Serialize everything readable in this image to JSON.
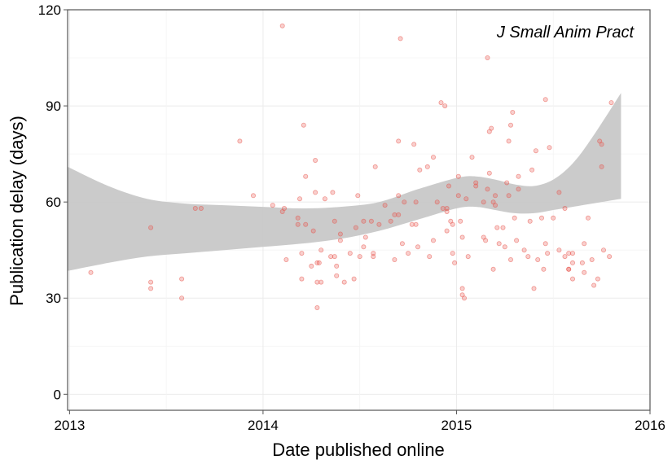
{
  "chart_data": {
    "type": "scatter",
    "title": "",
    "annotation": "J Small Anim Pract",
    "xlabel": "Date published online",
    "ylabel": "Publication delay (days)",
    "xlim": [
      2012.99,
      2016.0
    ],
    "ylim": [
      -5,
      120
    ],
    "x_ticks": [
      2013,
      2014,
      2015,
      2016
    ],
    "x_tick_labels": [
      "2013",
      "2014",
      "2015",
      "2016"
    ],
    "y_ticks": [
      0,
      30,
      60,
      90,
      120
    ],
    "y_tick_labels": [
      "0",
      "30",
      "60",
      "90",
      "120"
    ],
    "grid": true,
    "colors": {
      "points": "#e8534a",
      "band": "#c8c8c8",
      "grid": "#ebebeb",
      "axis": "#555555"
    },
    "series": [
      {
        "type": "scatter",
        "points": [
          [
            2013.11,
            38
          ],
          [
            2013.42,
            52
          ],
          [
            2013.42,
            35
          ],
          [
            2013.42,
            33
          ],
          [
            2013.58,
            36
          ],
          [
            2013.58,
            30
          ],
          [
            2013.65,
            58
          ],
          [
            2013.68,
            58
          ],
          [
            2013.88,
            79
          ],
          [
            2013.95,
            62
          ],
          [
            2014.05,
            59
          ],
          [
            2014.1,
            115
          ],
          [
            2014.1,
            57
          ],
          [
            2014.11,
            58
          ],
          [
            2014.12,
            42
          ],
          [
            2014.18,
            55
          ],
          [
            2014.18,
            53
          ],
          [
            2014.19,
            61
          ],
          [
            2014.2,
            44
          ],
          [
            2014.2,
            36
          ],
          [
            2014.21,
            84
          ],
          [
            2014.22,
            53
          ],
          [
            2014.22,
            68
          ],
          [
            2014.25,
            40
          ],
          [
            2014.26,
            51
          ],
          [
            2014.27,
            63
          ],
          [
            2014.27,
            73
          ],
          [
            2014.28,
            35
          ],
          [
            2014.28,
            27
          ],
          [
            2014.28,
            41
          ],
          [
            2014.29,
            41
          ],
          [
            2014.3,
            45
          ],
          [
            2014.3,
            35
          ],
          [
            2014.32,
            61
          ],
          [
            2014.35,
            43
          ],
          [
            2014.36,
            63
          ],
          [
            2014.37,
            54
          ],
          [
            2014.37,
            43
          ],
          [
            2014.38,
            40
          ],
          [
            2014.38,
            37
          ],
          [
            2014.4,
            50
          ],
          [
            2014.4,
            48
          ],
          [
            2014.42,
            35
          ],
          [
            2014.45,
            44
          ],
          [
            2014.47,
            36
          ],
          [
            2014.48,
            52
          ],
          [
            2014.49,
            62
          ],
          [
            2014.5,
            43
          ],
          [
            2014.52,
            54
          ],
          [
            2014.52,
            46
          ],
          [
            2014.53,
            49
          ],
          [
            2014.56,
            54
          ],
          [
            2014.57,
            44
          ],
          [
            2014.57,
            43
          ],
          [
            2014.58,
            71
          ],
          [
            2014.6,
            53
          ],
          [
            2014.63,
            59
          ],
          [
            2014.66,
            54
          ],
          [
            2014.68,
            42
          ],
          [
            2014.68,
            56
          ],
          [
            2014.7,
            79
          ],
          [
            2014.7,
            62
          ],
          [
            2014.7,
            56
          ],
          [
            2014.71,
            111
          ],
          [
            2014.72,
            47
          ],
          [
            2014.73,
            60
          ],
          [
            2014.75,
            44
          ],
          [
            2014.77,
            53
          ],
          [
            2014.78,
            78
          ],
          [
            2014.79,
            60
          ],
          [
            2014.79,
            53
          ],
          [
            2014.8,
            46
          ],
          [
            2014.81,
            70
          ],
          [
            2014.85,
            71
          ],
          [
            2014.86,
            43
          ],
          [
            2014.88,
            74
          ],
          [
            2014.88,
            48
          ],
          [
            2014.9,
            60
          ],
          [
            2014.92,
            91
          ],
          [
            2014.93,
            58
          ],
          [
            2014.94,
            90
          ],
          [
            2014.95,
            57
          ],
          [
            2014.95,
            58
          ],
          [
            2014.95,
            51
          ],
          [
            2014.96,
            65
          ],
          [
            2014.97,
            54
          ],
          [
            2014.98,
            53
          ],
          [
            2014.98,
            44
          ],
          [
            2014.99,
            41
          ],
          [
            2015.01,
            68
          ],
          [
            2015.01,
            62
          ],
          [
            2015.02,
            54
          ],
          [
            2015.03,
            49
          ],
          [
            2015.03,
            33
          ],
          [
            2015.03,
            31
          ],
          [
            2015.04,
            30
          ],
          [
            2015.05,
            61
          ],
          [
            2015.06,
            43
          ],
          [
            2015.08,
            74
          ],
          [
            2015.1,
            66
          ],
          [
            2015.1,
            65
          ],
          [
            2015.14,
            60
          ],
          [
            2015.14,
            49
          ],
          [
            2015.15,
            48
          ],
          [
            2015.16,
            105
          ],
          [
            2015.16,
            64
          ],
          [
            2015.17,
            69
          ],
          [
            2015.17,
            82
          ],
          [
            2015.18,
            83
          ],
          [
            2015.19,
            60
          ],
          [
            2015.19,
            39
          ],
          [
            2015.2,
            62
          ],
          [
            2015.2,
            59
          ],
          [
            2015.21,
            52
          ],
          [
            2015.22,
            47
          ],
          [
            2015.24,
            52
          ],
          [
            2015.25,
            46
          ],
          [
            2015.26,
            66
          ],
          [
            2015.27,
            62
          ],
          [
            2015.27,
            79
          ],
          [
            2015.28,
            84
          ],
          [
            2015.28,
            42
          ],
          [
            2015.29,
            88
          ],
          [
            2015.3,
            55
          ],
          [
            2015.31,
            48
          ],
          [
            2015.32,
            68
          ],
          [
            2015.32,
            64
          ],
          [
            2015.35,
            45
          ],
          [
            2015.37,
            43
          ],
          [
            2015.38,
            54
          ],
          [
            2015.39,
            70
          ],
          [
            2015.4,
            33
          ],
          [
            2015.41,
            76
          ],
          [
            2015.42,
            42
          ],
          [
            2015.44,
            55
          ],
          [
            2015.45,
            39
          ],
          [
            2015.46,
            92
          ],
          [
            2015.46,
            47
          ],
          [
            2015.47,
            44
          ],
          [
            2015.48,
            77
          ],
          [
            2015.5,
            55
          ],
          [
            2015.53,
            45
          ],
          [
            2015.53,
            63
          ],
          [
            2015.56,
            58
          ],
          [
            2015.56,
            43
          ],
          [
            2015.58,
            39
          ],
          [
            2015.58,
            44
          ],
          [
            2015.58,
            39
          ],
          [
            2015.6,
            44
          ],
          [
            2015.6,
            41
          ],
          [
            2015.6,
            36
          ],
          [
            2015.65,
            41
          ],
          [
            2015.66,
            38
          ],
          [
            2015.66,
            47
          ],
          [
            2015.68,
            55
          ],
          [
            2015.7,
            42
          ],
          [
            2015.71,
            34
          ],
          [
            2015.73,
            36
          ],
          [
            2015.74,
            79
          ],
          [
            2015.75,
            78
          ],
          [
            2015.75,
            71
          ],
          [
            2015.76,
            45
          ],
          [
            2015.79,
            43
          ],
          [
            2015.8,
            91
          ]
        ]
      },
      {
        "type": "band",
        "x": [
          2012.99,
          2013.2,
          2013.4,
          2013.6,
          2013.8,
          2014.0,
          2014.2,
          2014.4,
          2014.6,
          2014.8,
          2015.0,
          2015.1,
          2015.2,
          2015.3,
          2015.4,
          2015.5,
          2015.6,
          2015.7,
          2015.85
        ],
        "upper": [
          71,
          65,
          61,
          59.5,
          59,
          58.5,
          58,
          58.5,
          60,
          64,
          67.5,
          68,
          67,
          65.5,
          65,
          67,
          72,
          80,
          94
        ],
        "lower": [
          38.5,
          41,
          43,
          44,
          45,
          46,
          47,
          48.5,
          51,
          54.5,
          58,
          58.5,
          57.5,
          56.5,
          56.5,
          57.5,
          58.5,
          59.5,
          61
        ]
      }
    ]
  }
}
